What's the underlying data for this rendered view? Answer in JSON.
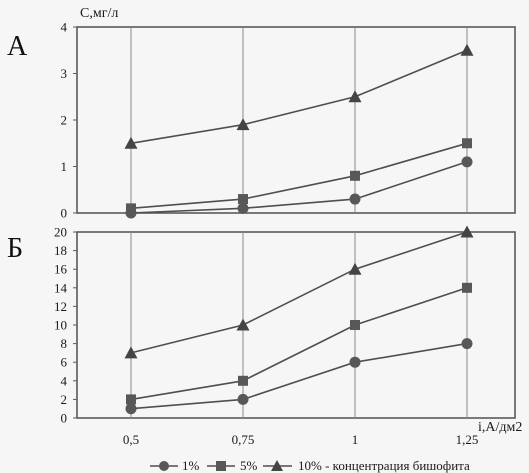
{
  "colors": {
    "line": "#4f4f4f",
    "marker": "#585858",
    "frame": "#5a5a5a",
    "grid": "#8a8a8a",
    "text": "#1a1a1a",
    "background": "#f6f6f6"
  },
  "chart_data": [
    {
      "type": "line",
      "panel_label": "А",
      "ylabel": "С,мг/л",
      "xlabel": "",
      "categories": [
        "0,5",
        "0,75",
        "1",
        "1,25"
      ],
      "x": [
        0.5,
        0.75,
        1,
        1.25
      ],
      "ylim": [
        0,
        4
      ],
      "yticks": [
        0,
        1,
        2,
        3,
        4
      ],
      "show_x_tick_labels": false,
      "grid": "vertical only",
      "series": [
        {
          "name": "10%",
          "marker": "triangle",
          "values": [
            1.5,
            1.9,
            2.5,
            3.5
          ]
        },
        {
          "name": "5%",
          "marker": "square",
          "values": [
            0.1,
            0.3,
            0.8,
            1.5
          ]
        },
        {
          "name": "1%",
          "marker": "circle",
          "values": [
            0,
            0.1,
            0.3,
            1.1
          ]
        }
      ]
    },
    {
      "type": "line",
      "panel_label": "Б",
      "ylabel": "",
      "xlabel": "i,А/дм2",
      "categories": [
        "0,5",
        "0,75",
        "1",
        "1,25"
      ],
      "x": [
        0.5,
        0.75,
        1,
        1.25
      ],
      "ylim": [
        0,
        20
      ],
      "yticks": [
        0,
        2,
        4,
        6,
        8,
        10,
        12,
        14,
        16,
        18,
        20
      ],
      "show_x_tick_labels": true,
      "grid": "vertical only",
      "series": [
        {
          "name": "10%",
          "marker": "triangle",
          "values": [
            7,
            10,
            16,
            20
          ]
        },
        {
          "name": "5%",
          "marker": "square",
          "values": [
            2,
            4,
            10,
            14
          ]
        },
        {
          "name": "1%",
          "marker": "circle",
          "values": [
            1,
            2,
            6,
            8
          ]
        }
      ]
    }
  ],
  "legend": {
    "position": "bottom",
    "items": [
      {
        "marker": "circle",
        "label": "1%"
      },
      {
        "marker": "square",
        "label": "5%"
      },
      {
        "marker": "triangle",
        "label": "10% - концентрация бишофита"
      }
    ]
  }
}
